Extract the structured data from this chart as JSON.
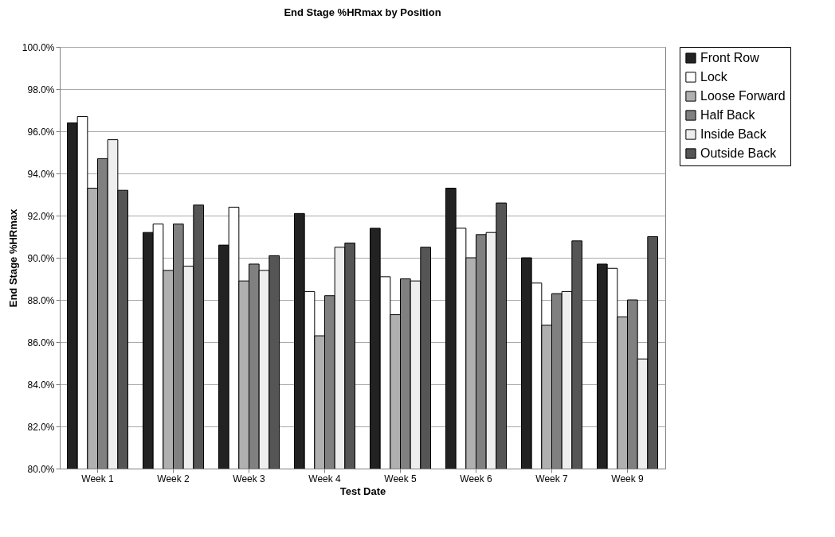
{
  "chart_data": {
    "type": "bar",
    "title": "End Stage %HRmax by Position",
    "xlabel": "Test Date",
    "ylabel": "End Stage %HRmax",
    "categories": [
      "Week 1",
      "Week 2",
      "Week 3",
      "Week 4",
      "Week 5",
      "Week 6",
      "Week 7",
      "Week 9"
    ],
    "series": [
      {
        "name": "Front Row",
        "color": "#222222",
        "values": [
          96.4,
          91.2,
          90.6,
          92.1,
          91.4,
          93.3,
          90.0,
          89.7
        ]
      },
      {
        "name": "Lock",
        "color": "#ffffff",
        "values": [
          96.7,
          91.6,
          92.4,
          88.4,
          89.1,
          91.4,
          88.8,
          89.5
        ]
      },
      {
        "name": "Loose Forward",
        "color": "#b0b0b0",
        "values": [
          93.3,
          89.4,
          88.9,
          86.3,
          87.3,
          90.0,
          86.8,
          87.2
        ]
      },
      {
        "name": "Half Back",
        "color": "#808080",
        "values": [
          94.7,
          91.6,
          89.7,
          88.2,
          89.0,
          91.1,
          88.3,
          88.0
        ]
      },
      {
        "name": "Inside Back",
        "color": "#eeeeee",
        "values": [
          95.6,
          89.6,
          89.4,
          90.5,
          88.9,
          91.2,
          88.4,
          85.2
        ]
      },
      {
        "name": "Outside Back",
        "color": "#555555",
        "values": [
          93.2,
          92.5,
          90.1,
          90.7,
          90.5,
          92.6,
          90.8,
          91.0
        ]
      }
    ],
    "ylim": [
      80,
      100
    ],
    "yticks": [
      {
        "value": 80,
        "label": "80.0%"
      },
      {
        "value": 82,
        "label": "82.0%"
      },
      {
        "value": 84,
        "label": "84.0%"
      },
      {
        "value": 86,
        "label": "86.0%"
      },
      {
        "value": 88,
        "label": "88.0%"
      },
      {
        "value": 90,
        "label": "90.0%"
      },
      {
        "value": 92,
        "label": "92.0%"
      },
      {
        "value": 94,
        "label": "94.0%"
      },
      {
        "value": 96,
        "label": "96.0%"
      },
      {
        "value": 98,
        "label": "98.0%"
      },
      {
        "value": 100,
        "label": "100.0%"
      }
    ],
    "grid": "y",
    "legend": "right"
  }
}
